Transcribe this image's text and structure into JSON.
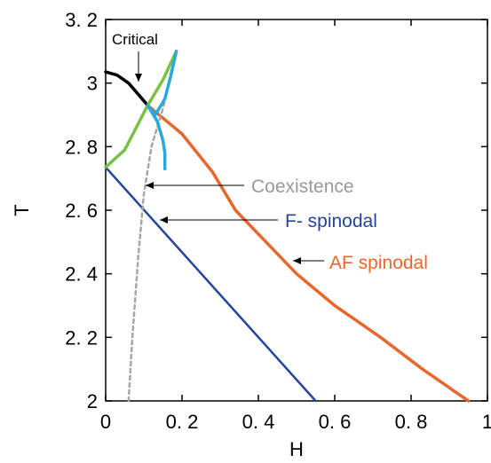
{
  "chart_data": {
    "type": "line",
    "title": "",
    "xlabel": "H",
    "ylabel": "T",
    "xlim": [
      0,
      1
    ],
    "ylim": [
      2,
      3.2
    ],
    "grid": false,
    "x_ticks": [
      {
        "value": 0,
        "label": "0"
      },
      {
        "value": 0.2,
        "label": "0. 2"
      },
      {
        "value": 0.4,
        "label": "0. 4"
      },
      {
        "value": 0.6,
        "label": "0. 6"
      },
      {
        "value": 0.8,
        "label": "0. 8"
      },
      {
        "value": 1,
        "label": "1"
      }
    ],
    "y_ticks": [
      {
        "value": 2,
        "label": "2"
      },
      {
        "value": 2.2,
        "label": "2. 2"
      },
      {
        "value": 2.4,
        "label": "2. 4"
      },
      {
        "value": 2.6,
        "label": "2. 6"
      },
      {
        "value": 2.8,
        "label": "2. 8"
      },
      {
        "value": 3,
        "label": "3"
      },
      {
        "value": 3.2,
        "label": "3. 2"
      }
    ],
    "series": [
      {
        "name": "Critical",
        "color": "#000000",
        "style": "solid",
        "points": [
          [
            0,
            3.035
          ],
          [
            0.03,
            3.025
          ],
          [
            0.06,
            3.0
          ],
          [
            0.085,
            2.965
          ],
          [
            0.11,
            2.93
          ]
        ]
      },
      {
        "name": "F- spinodal",
        "color": "#23459a",
        "style": "solid",
        "points": [
          [
            0,
            2.735
          ],
          [
            0.55,
            2.0
          ]
        ]
      },
      {
        "name": "AF spinodal",
        "color": "#e8672a",
        "style": "solid",
        "points": [
          [
            0.11,
            2.93
          ],
          [
            0.2,
            2.84
          ],
          [
            0.28,
            2.72
          ],
          [
            0.34,
            2.6
          ],
          [
            0.42,
            2.5
          ],
          [
            0.5,
            2.4
          ],
          [
            0.6,
            2.3
          ],
          [
            0.72,
            2.2
          ],
          [
            0.83,
            2.1
          ],
          [
            0.95,
            2.0
          ]
        ]
      },
      {
        "name": "Coexistence",
        "color": "#a6a6a6",
        "style": "dashed",
        "points": [
          [
            0.06,
            2.0
          ],
          [
            0.07,
            2.2
          ],
          [
            0.085,
            2.45
          ],
          [
            0.1,
            2.65
          ],
          [
            0.12,
            2.8
          ],
          [
            0.15,
            2.92
          ],
          [
            0.185,
            3.1
          ]
        ]
      },
      {
        "name": "",
        "color": "#7ac143",
        "style": "solid",
        "points": [
          [
            0,
            2.735
          ],
          [
            0.05,
            2.79
          ],
          [
            0.11,
            2.93
          ],
          [
            0.15,
            3.01
          ],
          [
            0.185,
            3.1
          ]
        ]
      },
      {
        "name": "",
        "color": "#29a8e0",
        "style": "solid",
        "points": [
          [
            0.185,
            3.1
          ],
          [
            0.17,
            3.02
          ],
          [
            0.155,
            2.95
          ],
          [
            0.13,
            2.9
          ],
          [
            0.11,
            2.93
          ],
          [
            0.135,
            2.88
          ],
          [
            0.15,
            2.82
          ],
          [
            0.155,
            2.78
          ],
          [
            0.155,
            2.73
          ]
        ]
      }
    ],
    "annotations": [
      {
        "text": "Critical",
        "color": "#000000",
        "arrow_to": [
          0.085,
          2.965
        ]
      },
      {
        "text": "Coexistence",
        "color": "#999999",
        "arrow_to": [
          0.115,
          2.685
        ]
      },
      {
        "text": "F- spinodal",
        "color": "#23459a",
        "arrow_to": [
          0.147,
          2.547
        ]
      },
      {
        "text": "AF spinodal",
        "color": "#e8672a",
        "arrow_to": [
          0.5,
          2.385
        ]
      }
    ]
  }
}
